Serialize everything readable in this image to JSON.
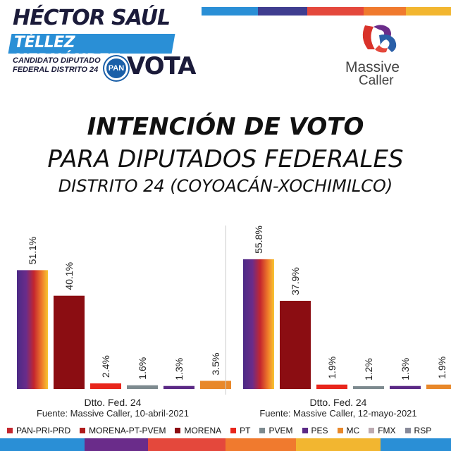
{
  "header": {
    "name_line1": "HÉCTOR SAÚL",
    "name_line2": "TÉLLEZ HERNÁNDEZ",
    "sub_line1": "CANDIDATO DIPUTADO",
    "sub_line2": "FEDERAL DISTRITO 24",
    "party": "PAN",
    "vota": "VOTA"
  },
  "brand": {
    "line1": "Massive",
    "line2": "Caller"
  },
  "titles": {
    "line1": "INTENCIÓN DE VOTO",
    "line2": "PARA DIPUTADOS FEDERALES",
    "line3": "DISTRITO 24 (COYOACÁN-XOCHIMILCO)"
  },
  "colors": {
    "pan_pri_prd": "#6a2c8a",
    "morena": "#8b0d12",
    "pt": "#e8261c",
    "pvem": "#7d8a8f",
    "pes": "#5b2a86",
    "mc": "#e8882a",
    "fmx": "#bcaab0",
    "rsp": "#888a99"
  },
  "chart_data": [
    {
      "type": "bar",
      "categories": [
        "PAN-PRI-PRD",
        "MORENA",
        "PT",
        "PVEM",
        "PES",
        "MC"
      ],
      "values": [
        51.1,
        40.1,
        2.4,
        1.6,
        1.3,
        3.5
      ],
      "labels": [
        "51.1%",
        "40.1%",
        "2.4%",
        "1.6%",
        "1.3%",
        "3.5%"
      ],
      "xlabel": "Dtto. Fed. 24",
      "source": "Fuente: Massive Caller, 10-abril-2021",
      "ylim": [
        0,
        60
      ]
    },
    {
      "type": "bar",
      "categories": [
        "PAN-PRI-PRD",
        "MORENA",
        "PT",
        "PVEM",
        "PES",
        "MC"
      ],
      "values": [
        55.8,
        37.9,
        1.9,
        1.2,
        1.3,
        1.9
      ],
      "labels": [
        "55.8%",
        "37.9%",
        "1.9%",
        "1.2%",
        "1.3%",
        "1.9%"
      ],
      "xlabel": "Dtto. Fed. 24",
      "source": "Fuente: Massive Caller, 12-mayo-2021",
      "ylim": [
        0,
        60
      ]
    }
  ],
  "legend": [
    {
      "label": "PAN-PRI-PRD",
      "color": "#c4262e"
    },
    {
      "label": "MORENA-PT-PVEM",
      "color": "#b01c1c"
    },
    {
      "label": "MORENA",
      "color": "#8b0d12"
    },
    {
      "label": "PT",
      "color": "#e8261c"
    },
    {
      "label": "PVEM",
      "color": "#7d8a8f"
    },
    {
      "label": "PES",
      "color": "#5b2a86"
    },
    {
      "label": "MC",
      "color": "#e8882a"
    },
    {
      "label": "FMX",
      "color": "#bcaab0"
    },
    {
      "label": "RSP",
      "color": "#888a99"
    }
  ]
}
